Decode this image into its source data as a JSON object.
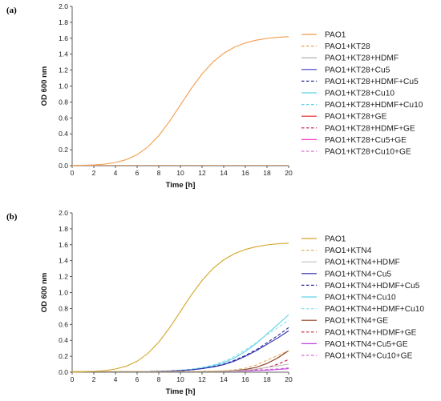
{
  "chart_data": [
    {
      "type": "line",
      "panel_label": "(a)",
      "xlabel": "Time [h]",
      "ylabel": "OD 600 nm",
      "xlim": [
        0,
        20
      ],
      "ylim": [
        0,
        2.0
      ],
      "xticks": [
        "0",
        "2",
        "4",
        "6",
        "8",
        "10",
        "12",
        "14",
        "16",
        "18",
        "20"
      ],
      "yticks": [
        "0.0",
        "0.2",
        "0.4",
        "0.6",
        "0.8",
        "1.0",
        "1.2",
        "1.4",
        "1.6",
        "1.8",
        "2.0"
      ],
      "x": [
        0,
        1,
        2,
        3,
        4,
        5,
        6,
        7,
        8,
        9,
        10,
        11,
        12,
        13,
        14,
        15,
        16,
        17,
        18,
        19,
        20
      ],
      "legend_position": "right",
      "series": [
        {
          "name": "PAO1",
          "color": "#f39c4a",
          "dash": "solid",
          "values": [
            0.002,
            0.004,
            0.01,
            0.02,
            0.04,
            0.076,
            0.138,
            0.236,
            0.377,
            0.557,
            0.762,
            0.968,
            1.152,
            1.301,
            1.411,
            1.489,
            1.541,
            1.576,
            1.598,
            1.612,
            1.62
          ]
        },
        {
          "name": "PAO1+KT28",
          "color": "#e8a060",
          "dash": "dashed",
          "values": [
            0.005,
            0.005,
            0.005,
            0.005,
            0.005,
            0.005,
            0.005,
            0.005,
            0.005,
            0.005,
            0.005,
            0.005,
            0.005,
            0.005,
            0.005,
            0.005,
            0.005,
            0.005,
            0.005,
            0.005,
            0.005
          ]
        },
        {
          "name": "PAO1+KT28+HDMF",
          "color": "#a8a8a8",
          "dash": "solid",
          "values": [
            0.005,
            0.005,
            0.005,
            0.005,
            0.005,
            0.005,
            0.005,
            0.005,
            0.005,
            0.005,
            0.005,
            0.005,
            0.005,
            0.005,
            0.005,
            0.005,
            0.005,
            0.005,
            0.005,
            0.005,
            0.005
          ]
        },
        {
          "name": "PAO1+KT28+Cu5",
          "color": "#3b3bc8",
          "dash": "solid",
          "values": [
            0.005,
            0.005,
            0.005,
            0.005,
            0.005,
            0.005,
            0.005,
            0.005,
            0.005,
            0.005,
            0.005,
            0.005,
            0.005,
            0.005,
            0.005,
            0.005,
            0.005,
            0.005,
            0.005,
            0.005,
            0.005
          ]
        },
        {
          "name": "PAO1+KT28+HDMF+Cu5",
          "color": "#2a2a90",
          "dash": "dashed",
          "values": [
            0.005,
            0.005,
            0.005,
            0.005,
            0.005,
            0.005,
            0.005,
            0.005,
            0.005,
            0.005,
            0.005,
            0.005,
            0.005,
            0.005,
            0.005,
            0.005,
            0.005,
            0.005,
            0.005,
            0.005,
            0.005
          ]
        },
        {
          "name": "PAO1+KT28+Cu10",
          "color": "#5fd3e8",
          "dash": "solid",
          "values": [
            0.005,
            0.005,
            0.005,
            0.005,
            0.005,
            0.005,
            0.005,
            0.005,
            0.005,
            0.005,
            0.005,
            0.005,
            0.005,
            0.005,
            0.005,
            0.005,
            0.005,
            0.005,
            0.005,
            0.005,
            0.005
          ]
        },
        {
          "name": "PAO1+KT28+HDMF+Cu10",
          "color": "#5fd3e8",
          "dash": "dashed",
          "values": [
            0.005,
            0.005,
            0.005,
            0.005,
            0.005,
            0.005,
            0.005,
            0.005,
            0.005,
            0.005,
            0.005,
            0.005,
            0.005,
            0.005,
            0.005,
            0.005,
            0.005,
            0.005,
            0.005,
            0.005,
            0.005
          ]
        },
        {
          "name": "PAO1+KT28+GE",
          "color": "#e02020",
          "dash": "solid",
          "values": [
            0.005,
            0.005,
            0.005,
            0.005,
            0.005,
            0.005,
            0.005,
            0.005,
            0.005,
            0.005,
            0.005,
            0.005,
            0.005,
            0.005,
            0.005,
            0.005,
            0.005,
            0.005,
            0.005,
            0.005,
            0.005
          ]
        },
        {
          "name": "PAO1+KT28+HDMF+GE",
          "color": "#c01840",
          "dash": "dashed",
          "values": [
            0.005,
            0.005,
            0.005,
            0.005,
            0.005,
            0.005,
            0.005,
            0.005,
            0.005,
            0.005,
            0.005,
            0.005,
            0.005,
            0.005,
            0.005,
            0.005,
            0.005,
            0.005,
            0.005,
            0.005,
            0.005
          ]
        },
        {
          "name": "PAO1+KT28+Cu5+GE",
          "color": "#ff40c0",
          "dash": "solid",
          "values": [
            0.005,
            0.005,
            0.005,
            0.005,
            0.005,
            0.005,
            0.005,
            0.005,
            0.005,
            0.005,
            0.005,
            0.005,
            0.005,
            0.005,
            0.005,
            0.005,
            0.005,
            0.005,
            0.005,
            0.005,
            0.005
          ]
        },
        {
          "name": "PAO1+KT28+Cu10+GE",
          "color": "#d070d0",
          "dash": "dashed",
          "values": [
            0.005,
            0.005,
            0.005,
            0.005,
            0.005,
            0.005,
            0.005,
            0.005,
            0.005,
            0.005,
            0.005,
            0.005,
            0.005,
            0.005,
            0.005,
            0.005,
            0.005,
            0.005,
            0.005,
            0.005,
            0.005
          ]
        }
      ]
    },
    {
      "type": "line",
      "panel_label": "(b)",
      "xlabel": "Time [h]",
      "ylabel": "OD 600 nm",
      "xlim": [
        0,
        20
      ],
      "ylim": [
        0,
        2.0
      ],
      "xticks": [
        "0",
        "2",
        "4",
        "6",
        "8",
        "10",
        "12",
        "14",
        "16",
        "18",
        "20"
      ],
      "yticks": [
        "0.0",
        "0.2",
        "0.4",
        "0.6",
        "0.8",
        "1.0",
        "1.2",
        "1.4",
        "1.6",
        "1.8",
        "2.0"
      ],
      "x": [
        0,
        1,
        2,
        3,
        4,
        5,
        6,
        7,
        8,
        9,
        10,
        11,
        12,
        13,
        14,
        15,
        16,
        17,
        18,
        19,
        20
      ],
      "legend_position": "right",
      "series": [
        {
          "name": "PAO1",
          "color": "#d4a52a",
          "dash": "solid",
          "values": [
            0.002,
            0.004,
            0.01,
            0.02,
            0.04,
            0.076,
            0.138,
            0.236,
            0.377,
            0.557,
            0.762,
            0.968,
            1.152,
            1.301,
            1.411,
            1.489,
            1.541,
            1.576,
            1.598,
            1.612,
            1.62
          ]
        },
        {
          "name": "PAO1+KTN4",
          "color": "#e0b060",
          "dash": "dashed",
          "values": [
            0.01,
            0.01,
            0.01,
            0.01,
            0.01,
            0.01,
            0.01,
            0.01,
            0.01,
            0.01,
            0.01,
            0.01,
            0.01,
            0.012,
            0.018,
            0.03,
            0.05,
            0.09,
            0.15,
            0.21,
            0.27
          ]
        },
        {
          "name": "PAO1+KTN4+HDMF",
          "color": "#c0c0c0",
          "dash": "solid",
          "values": [
            0.01,
            0.01,
            0.01,
            0.01,
            0.01,
            0.01,
            0.01,
            0.01,
            0.01,
            0.01,
            0.01,
            0.01,
            0.01,
            0.01,
            0.012,
            0.016,
            0.024,
            0.04,
            0.06,
            0.08,
            0.1
          ]
        },
        {
          "name": "PAO1+KTN4+Cu5",
          "color": "#2a2ab0",
          "dash": "solid",
          "values": [
            0.01,
            0.01,
            0.01,
            0.01,
            0.01,
            0.01,
            0.01,
            0.01,
            0.012,
            0.015,
            0.02,
            0.03,
            0.045,
            0.065,
            0.095,
            0.14,
            0.2,
            0.27,
            0.35,
            0.43,
            0.52
          ]
        },
        {
          "name": "PAO1+KTN4+HDMF+Cu5",
          "color": "#2a2a90",
          "dash": "dashed",
          "values": [
            0.01,
            0.01,
            0.01,
            0.01,
            0.01,
            0.01,
            0.01,
            0.01,
            0.012,
            0.015,
            0.02,
            0.03,
            0.045,
            0.07,
            0.1,
            0.15,
            0.21,
            0.28,
            0.37,
            0.46,
            0.56
          ]
        },
        {
          "name": "PAO1+KTN4+Cu10",
          "color": "#5fd3e8",
          "dash": "solid",
          "values": [
            0.01,
            0.01,
            0.01,
            0.01,
            0.01,
            0.01,
            0.01,
            0.01,
            0.012,
            0.015,
            0.022,
            0.034,
            0.052,
            0.08,
            0.12,
            0.18,
            0.26,
            0.36,
            0.48,
            0.6,
            0.72
          ]
        },
        {
          "name": "PAO1+KTN4+HDMF+Cu10",
          "color": "#8ee2f0",
          "dash": "dashed",
          "values": [
            0.01,
            0.01,
            0.01,
            0.01,
            0.01,
            0.01,
            0.01,
            0.01,
            0.012,
            0.016,
            0.024,
            0.038,
            0.06,
            0.09,
            0.135,
            0.2,
            0.28,
            0.37,
            0.47,
            0.56,
            0.65
          ]
        },
        {
          "name": "PAO1+KTN4+GE",
          "color": "#8b3a1a",
          "dash": "solid",
          "values": [
            0.01,
            0.01,
            0.01,
            0.01,
            0.01,
            0.01,
            0.01,
            0.01,
            0.01,
            0.01,
            0.01,
            0.01,
            0.01,
            0.011,
            0.014,
            0.02,
            0.035,
            0.06,
            0.11,
            0.18,
            0.27
          ]
        },
        {
          "name": "PAO1+KTN4+HDMF+GE",
          "color": "#c02040",
          "dash": "dashed",
          "values": [
            0.01,
            0.01,
            0.01,
            0.01,
            0.01,
            0.01,
            0.01,
            0.01,
            0.01,
            0.01,
            0.01,
            0.01,
            0.01,
            0.01,
            0.012,
            0.015,
            0.022,
            0.035,
            0.06,
            0.1,
            0.16
          ]
        },
        {
          "name": "PAO1+KTN4+Cu5+GE",
          "color": "#c040e0",
          "dash": "solid",
          "values": [
            0.01,
            0.01,
            0.01,
            0.01,
            0.01,
            0.01,
            0.01,
            0.01,
            0.01,
            0.01,
            0.01,
            0.01,
            0.01,
            0.01,
            0.011,
            0.013,
            0.016,
            0.02,
            0.026,
            0.034,
            0.045
          ]
        },
        {
          "name": "PAO1+KTN4+Cu10+GE",
          "color": "#d070d0",
          "dash": "dashed",
          "values": [
            0.01,
            0.01,
            0.01,
            0.01,
            0.01,
            0.01,
            0.01,
            0.01,
            0.01,
            0.01,
            0.01,
            0.01,
            0.01,
            0.011,
            0.013,
            0.016,
            0.02,
            0.026,
            0.033,
            0.042,
            0.055
          ]
        }
      ]
    }
  ]
}
